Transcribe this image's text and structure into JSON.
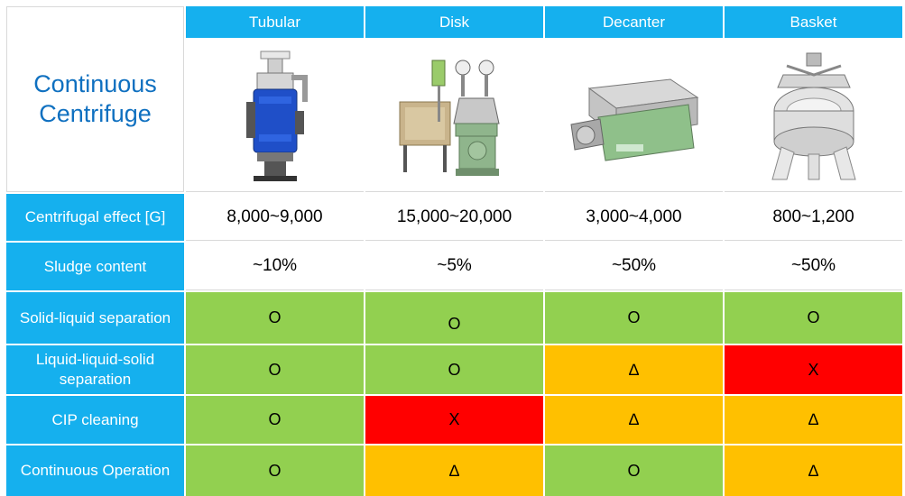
{
  "title": "Continuous\nCentrifuge",
  "columns": [
    "Tubular",
    "Disk",
    "Decanter",
    "Basket"
  ],
  "colors": {
    "header_blue": "#15b0ee",
    "title_blue": "#0f70c0",
    "good": "#92d050",
    "partial": "#ffc000",
    "poor": "#ff0000"
  },
  "photos": [
    "tubular-centrifuge-photo",
    "disk-centrifuge-photo",
    "decanter-centrifuge-photo",
    "basket-centrifuge-photo"
  ],
  "rows": [
    {
      "label": "Centrifugal effect [G]",
      "values": [
        "8,000~9,000",
        "15,000~20,000",
        "3,000~4,000",
        "800~1,200"
      ]
    },
    {
      "label": "Sludge content",
      "values": [
        "~10%",
        "~5%",
        "~50%",
        "~50%"
      ]
    },
    {
      "label": "Solid-liquid separation",
      "values": [
        "O",
        "O",
        "O",
        "O"
      ],
      "ratings": [
        "good",
        "good",
        "good",
        "good"
      ]
    },
    {
      "label": "Liquid-liquid-solid separation",
      "values": [
        "O",
        "O",
        "∆",
        "X"
      ],
      "ratings": [
        "good",
        "good",
        "partial",
        "poor"
      ]
    },
    {
      "label": "CIP cleaning",
      "values": [
        "O",
        "X",
        "∆",
        "∆"
      ],
      "ratings": [
        "good",
        "poor",
        "partial",
        "partial"
      ]
    },
    {
      "label": "Continuous Operation",
      "values": [
        "O",
        "∆",
        "O",
        "∆"
      ],
      "ratings": [
        "good",
        "partial",
        "good",
        "partial"
      ]
    }
  ]
}
